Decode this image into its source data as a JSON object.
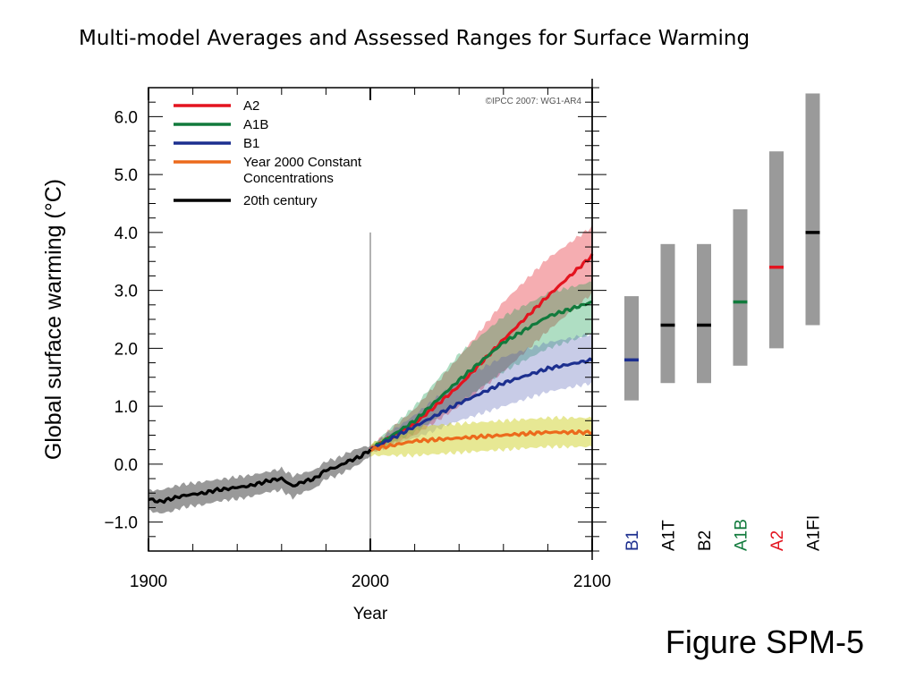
{
  "title": "Multi-model Averages and Assessed Ranges for Surface Warming",
  "figure_id": "Figure SPM-5",
  "copyright": "©IPCC  2007: WG1-AR4",
  "colors": {
    "A2": "#e3141f",
    "A1B": "#117a3c",
    "B1": "#1c2f8f",
    "constant": "#ec6a1c",
    "century20": "#000000",
    "range_bar": "#9a9a9a"
  },
  "chart_data": [
    {
      "type": "line",
      "title": "",
      "xlabel": "Year",
      "ylabel": "Global surface warming (°C)",
      "xlim": [
        1900,
        2100
      ],
      "ylim": [
        -1.5,
        6.5
      ],
      "x_ticks": [
        "1900",
        "2000",
        "2100"
      ],
      "y_ticks": [
        "−1.0",
        "0.0",
        "1.0",
        "2.0",
        "3.0",
        "4.0",
        "5.0",
        "6.0"
      ],
      "y_tick_values": [
        -1.0,
        0.0,
        1.0,
        2.0,
        3.0,
        4.0,
        5.0,
        6.0
      ],
      "x_tick_values": [
        1900,
        2000,
        2100
      ],
      "grid": false,
      "legend_position": "top-left",
      "legend": [
        "A2",
        "A1B",
        "B1",
        "Year 2000 Constant Concentrations",
        "20th century"
      ],
      "legend_lines": [
        {
          "key": "A2",
          "lines": [
            "A2"
          ]
        },
        {
          "key": "A1B",
          "lines": [
            "A1B"
          ]
        },
        {
          "key": "B1",
          "lines": [
            "B1"
          ]
        },
        {
          "key": "constant",
          "lines": [
            "Year 2000 Constant",
            "Concentrations"
          ]
        },
        {
          "key": "century20",
          "lines": [
            "20th century"
          ]
        }
      ],
      "series": [
        {
          "name": "A2",
          "color_key": "A2",
          "x": [
            2000,
            2020,
            2040,
            2060,
            2080,
            2100
          ],
          "values": [
            0.25,
            0.7,
            1.35,
            2.15,
            2.9,
            3.6
          ],
          "upper": [
            0.3,
            0.95,
            1.85,
            2.8,
            3.55,
            4.1
          ],
          "lower": [
            0.2,
            0.5,
            1.0,
            1.6,
            2.3,
            2.95
          ]
        },
        {
          "name": "A1B",
          "color_key": "A1B",
          "x": [
            2000,
            2020,
            2040,
            2060,
            2080,
            2100
          ],
          "values": [
            0.25,
            0.75,
            1.45,
            2.1,
            2.55,
            2.8
          ],
          "upper": [
            0.3,
            1.0,
            1.9,
            2.55,
            2.95,
            3.15
          ],
          "lower": [
            0.2,
            0.55,
            1.05,
            1.6,
            2.0,
            2.25
          ]
        },
        {
          "name": "B1",
          "color_key": "B1",
          "x": [
            2000,
            2020,
            2040,
            2060,
            2080,
            2100
          ],
          "values": [
            0.25,
            0.65,
            1.05,
            1.4,
            1.65,
            1.8
          ],
          "upper": [
            0.3,
            0.85,
            1.45,
            1.85,
            2.1,
            2.25
          ],
          "lower": [
            0.2,
            0.45,
            0.75,
            1.0,
            1.25,
            1.4
          ]
        },
        {
          "name": "Year 2000 Constant Concentrations",
          "color_key": "constant",
          "x": [
            2000,
            2020,
            2040,
            2060,
            2080,
            2100
          ],
          "values": [
            0.25,
            0.4,
            0.45,
            0.5,
            0.55,
            0.55
          ],
          "upper": [
            0.35,
            0.65,
            0.7,
            0.75,
            0.8,
            0.8
          ],
          "lower": [
            0.15,
            0.15,
            0.2,
            0.25,
            0.3,
            0.3
          ]
        },
        {
          "name": "20th century",
          "color_key": "century20",
          "x": [
            1900,
            1905,
            1910,
            1915,
            1920,
            1925,
            1930,
            1935,
            1940,
            1945,
            1950,
            1955,
            1960,
            1965,
            1970,
            1975,
            1980,
            1985,
            1990,
            1995,
            2000
          ],
          "values": [
            -0.6,
            -0.65,
            -0.6,
            -0.55,
            -0.52,
            -0.5,
            -0.45,
            -0.43,
            -0.4,
            -0.38,
            -0.33,
            -0.28,
            -0.25,
            -0.38,
            -0.3,
            -0.25,
            -0.1,
            -0.05,
            0.05,
            0.12,
            0.25
          ],
          "upper": [
            -0.45,
            -0.45,
            -0.4,
            -0.35,
            -0.33,
            -0.3,
            -0.27,
            -0.25,
            -0.22,
            -0.2,
            -0.16,
            -0.12,
            -0.08,
            -0.2,
            -0.15,
            -0.1,
            0.05,
            0.1,
            0.2,
            0.28,
            0.32
          ],
          "lower": [
            -0.8,
            -0.85,
            -0.82,
            -0.75,
            -0.72,
            -0.7,
            -0.65,
            -0.62,
            -0.6,
            -0.57,
            -0.52,
            -0.47,
            -0.45,
            -0.58,
            -0.48,
            -0.42,
            -0.25,
            -0.2,
            -0.1,
            0.0,
            0.15
          ]
        }
      ]
    },
    {
      "type": "bar",
      "title": "",
      "categories": [
        "B1",
        "A1T",
        "B2",
        "A1B",
        "A2",
        "A1FI"
      ],
      "label_color_keys": [
        "B1",
        "century20",
        "century20",
        "A1B",
        "A2",
        "century20"
      ],
      "range_low": [
        1.1,
        1.4,
        1.4,
        1.7,
        2.0,
        2.4
      ],
      "range_high": [
        2.9,
        3.8,
        3.8,
        4.4,
        5.4,
        6.4
      ],
      "best_estimate": [
        1.8,
        2.4,
        2.4,
        2.8,
        3.4,
        4.0
      ],
      "best_estimate_color_keys": [
        "B1",
        "century20",
        "century20",
        "A1B",
        "A2",
        "century20"
      ],
      "ylim": [
        -1.5,
        6.5
      ]
    }
  ]
}
